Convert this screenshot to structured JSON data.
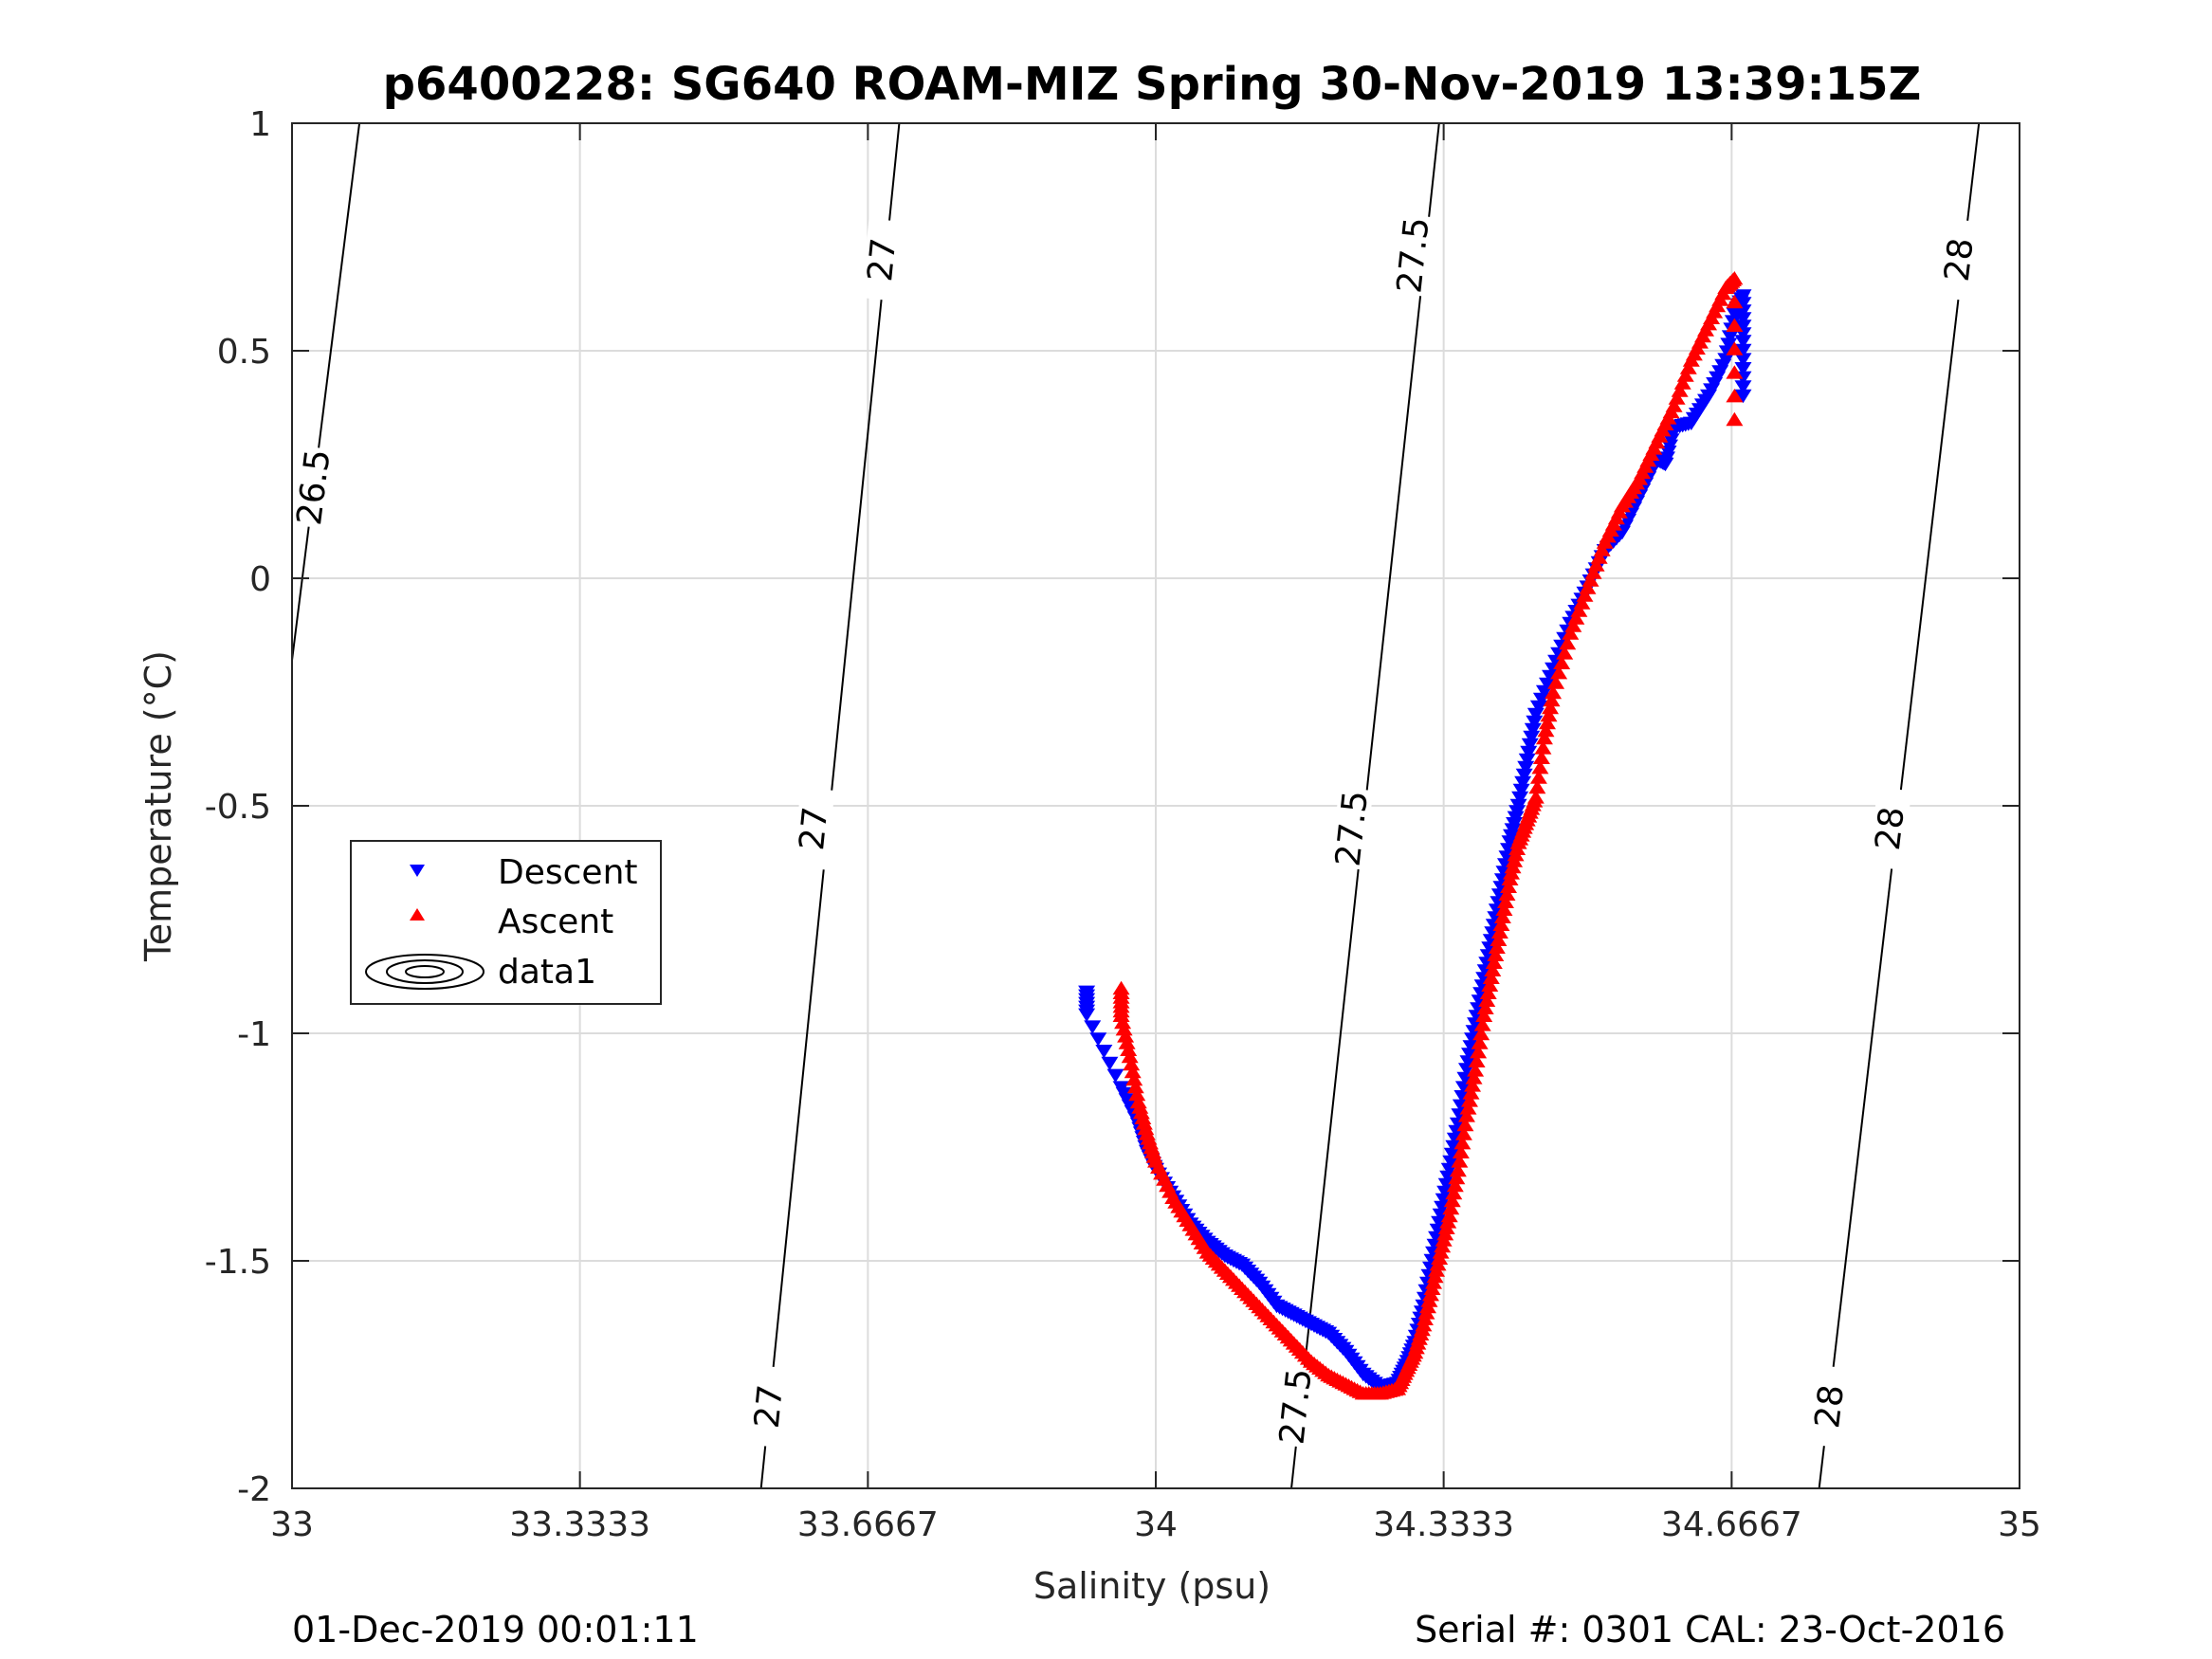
{
  "chart_data": {
    "type": "scatter",
    "title": "p6400228: SG640 ROAM-MIZ Spring 30-Nov-2019 13:39:15Z",
    "xlabel": "Salinity (psu)",
    "ylabel": "Temperature (°C)",
    "xlim": [
      33,
      35
    ],
    "ylim": [
      -2,
      1
    ],
    "xticks": [
      33,
      33.3333,
      33.6667,
      34,
      34.3333,
      34.6667,
      35
    ],
    "xtick_labels": [
      "33",
      "33.3333",
      "33.6667",
      "34",
      "34.3333",
      "34.6667",
      "35"
    ],
    "yticks": [
      -2,
      -1.5,
      -1,
      -0.5,
      0,
      0.5,
      1
    ],
    "ytick_labels": [
      "-2",
      "-1.5",
      "-1",
      "-0.5",
      "0",
      "0.5",
      "1"
    ],
    "grid": true,
    "legend_position": "middle-left",
    "legend": [
      "Descent",
      "Ascent",
      "data1"
    ],
    "series": [
      {
        "name": "Descent",
        "marker": "triangle-down",
        "color": "#0000ff",
        "x": [
          33.92,
          33.92,
          33.96,
          33.98,
          33.99,
          34.0,
          34.02,
          34.04,
          34.06,
          34.08,
          34.1,
          34.12,
          34.14,
          34.16,
          34.18,
          34.2,
          34.22,
          34.24,
          34.26,
          34.28,
          34.29,
          34.3,
          34.31,
          34.32,
          34.33,
          34.34,
          34.35,
          34.36,
          34.37,
          34.38,
          34.39,
          34.4,
          34.41,
          34.42,
          34.43,
          34.44,
          34.46,
          34.48,
          34.5,
          34.52,
          34.54,
          34.56,
          34.58,
          34.59,
          34.6,
          34.62,
          34.64,
          34.66,
          34.67,
          34.68,
          34.68,
          34.68
        ],
        "y": [
          -0.91,
          -0.96,
          -1.12,
          -1.2,
          -1.26,
          -1.3,
          -1.36,
          -1.42,
          -1.46,
          -1.49,
          -1.51,
          -1.55,
          -1.6,
          -1.62,
          -1.64,
          -1.66,
          -1.7,
          -1.75,
          -1.78,
          -1.77,
          -1.73,
          -1.68,
          -1.6,
          -1.5,
          -1.4,
          -1.3,
          -1.2,
          -1.08,
          -0.98,
          -0.88,
          -0.78,
          -0.68,
          -0.58,
          -0.5,
          -0.4,
          -0.3,
          -0.2,
          -0.1,
          -0.02,
          0.06,
          0.1,
          0.18,
          0.26,
          0.25,
          0.33,
          0.34,
          0.4,
          0.48,
          0.58,
          0.62,
          0.52,
          0.4
        ]
      },
      {
        "name": "Ascent",
        "marker": "triangle-up",
        "color": "#ff0000",
        "x": [
          33.96,
          33.96,
          33.97,
          33.98,
          33.99,
          34.0,
          34.02,
          34.04,
          34.06,
          34.08,
          34.1,
          34.12,
          34.14,
          34.16,
          34.18,
          34.2,
          34.22,
          34.24,
          34.26,
          34.28,
          34.29,
          34.3,
          34.31,
          34.32,
          34.33,
          34.34,
          34.35,
          34.36,
          34.37,
          34.38,
          34.39,
          34.4,
          34.41,
          34.42,
          34.43,
          34.44,
          34.45,
          34.46,
          34.48,
          34.5,
          34.52,
          34.54,
          34.56,
          34.58,
          34.6,
          34.62,
          34.64,
          34.66,
          34.67,
          34.67
        ],
        "y": [
          -0.9,
          -0.96,
          -1.05,
          -1.15,
          -1.22,
          -1.28,
          -1.36,
          -1.42,
          -1.48,
          -1.52,
          -1.56,
          -1.6,
          -1.64,
          -1.68,
          -1.72,
          -1.75,
          -1.77,
          -1.79,
          -1.79,
          -1.78,
          -1.74,
          -1.7,
          -1.64,
          -1.56,
          -1.48,
          -1.4,
          -1.3,
          -1.18,
          -1.08,
          -0.96,
          -0.86,
          -0.76,
          -0.66,
          -0.58,
          -0.53,
          -0.48,
          -0.35,
          -0.25,
          -0.12,
          -0.02,
          0.08,
          0.16,
          0.22,
          0.3,
          0.38,
          0.48,
          0.56,
          0.64,
          0.66,
          0.35
        ]
      }
    ],
    "contour_levels": [
      {
        "label": "26.5",
        "x_top": 33.078,
        "x_bottom": 33.0,
        "y_bottom": -0.18,
        "label_pos": [
          33.025,
          0.2
        ]
      },
      {
        "label": "27",
        "x_top": 33.703,
        "x_bottom": 33.543,
        "label_pos": [
          33.683,
          0.7
        ],
        "label_pos2": [
          33.604,
          -0.55
        ],
        "label_pos3": [
          33.552,
          -1.82
        ]
      },
      {
        "label": "27.5",
        "x_top": 34.328,
        "x_bottom": 34.157,
        "label_pos": [
          34.298,
          0.71
        ],
        "label_pos2": [
          34.227,
          -0.55
        ],
        "label_pos3": [
          34.162,
          -1.82
        ]
      },
      {
        "label": "28",
        "x_top": 34.953,
        "x_bottom": 34.768,
        "label_pos": [
          34.93,
          0.7
        ],
        "label_pos2": [
          34.85,
          -0.55
        ],
        "label_pos3": [
          34.78,
          -1.82
        ]
      }
    ]
  },
  "footer": {
    "timestamp": "01-Dec-2019 00:01:11",
    "serial": "Serial #: 0301  CAL: 23-Oct-2016"
  }
}
